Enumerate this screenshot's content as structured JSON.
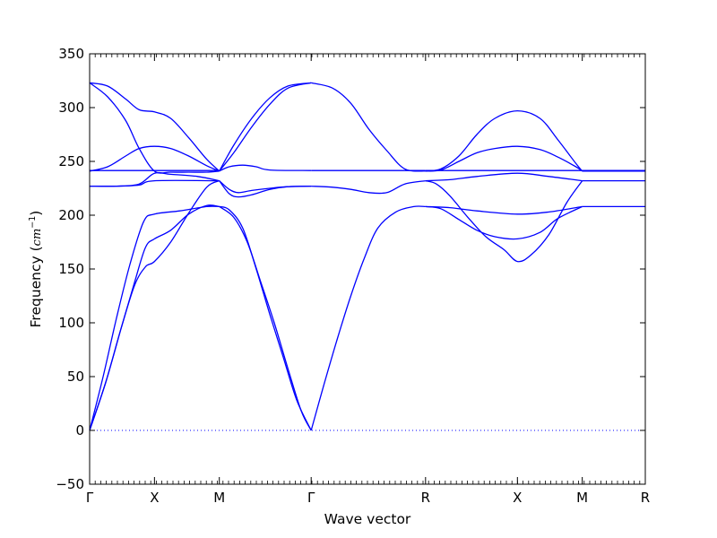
{
  "chart_data": {
    "type": "line",
    "title": "",
    "xlabel": "Wave vector",
    "ylabel_prefix": "Frequency (",
    "ylabel_unit": "cm",
    "ylabel_exp": "−1",
    "ylabel_suffix": ")",
    "ylim": [
      -50,
      350
    ],
    "yticks": [
      -50,
      0,
      50,
      100,
      150,
      200,
      250,
      300,
      350
    ],
    "ytick_labels": [
      "−50",
      "0",
      "50",
      "100",
      "150",
      "200",
      "250",
      "300",
      "350"
    ],
    "xlim": [
      0,
      6.17
    ],
    "xticks": [
      0,
      0.72,
      1.44,
      2.46,
      3.73,
      4.75,
      5.47,
      6.17
    ],
    "xtick_labels": [
      "Γ",
      "X",
      "M",
      "Γ",
      "R",
      "X",
      "M",
      "R"
    ],
    "zero_line": true,
    "line_color": "#0000ff",
    "series": [
      {
        "points": [
          [
            0,
            323
          ],
          [
            0.2,
            320
          ],
          [
            0.4,
            308
          ],
          [
            0.55,
            298
          ],
          [
            0.72,
            296
          ],
          [
            0.9,
            290
          ],
          [
            1.1,
            272
          ],
          [
            1.3,
            252
          ],
          [
            1.44,
            241
          ]
        ]
      },
      {
        "points": [
          [
            0,
            323
          ],
          [
            0.2,
            310
          ],
          [
            0.4,
            288
          ],
          [
            0.55,
            262
          ],
          [
            0.72,
            241
          ],
          [
            0.9,
            240
          ],
          [
            1.1,
            240
          ],
          [
            1.3,
            240
          ],
          [
            1.44,
            241
          ]
        ]
      },
      {
        "points": [
          [
            0,
            241
          ],
          [
            0.2,
            245
          ],
          [
            0.4,
            255
          ],
          [
            0.55,
            262
          ],
          [
            0.72,
            264
          ],
          [
            0.9,
            262
          ],
          [
            1.1,
            255
          ],
          [
            1.3,
            246
          ],
          [
            1.44,
            241
          ]
        ]
      },
      {
        "points": [
          [
            0,
            241.5
          ],
          [
            0.72,
            241.5
          ],
          [
            1.44,
            241.5
          ]
        ]
      },
      {
        "points": [
          [
            0,
            227
          ],
          [
            0.3,
            227
          ],
          [
            0.55,
            229
          ],
          [
            0.72,
            239
          ],
          [
            0.9,
            238
          ],
          [
            1.2,
            236
          ],
          [
            1.44,
            232
          ]
        ]
      },
      {
        "points": [
          [
            0,
            227
          ],
          [
            0.3,
            227
          ],
          [
            0.55,
            228
          ],
          [
            0.72,
            232
          ],
          [
            1.44,
            232
          ]
        ]
      },
      {
        "points": [
          [
            0,
            0
          ],
          [
            0.15,
            50
          ],
          [
            0.3,
            105
          ],
          [
            0.45,
            155
          ],
          [
            0.6,
            194
          ],
          [
            0.72,
            201
          ],
          [
            1.0,
            204
          ],
          [
            1.3,
            208
          ],
          [
            1.44,
            208
          ]
        ]
      },
      {
        "points": [
          [
            0,
            0
          ],
          [
            0.18,
            45
          ],
          [
            0.35,
            95
          ],
          [
            0.5,
            138
          ],
          [
            0.62,
            170
          ],
          [
            0.72,
            178
          ],
          [
            0.9,
            186
          ],
          [
            1.1,
            201
          ],
          [
            1.3,
            209
          ],
          [
            1.44,
            208
          ]
        ]
      },
      {
        "points": [
          [
            0,
            0
          ],
          [
            0.18,
            45
          ],
          [
            0.35,
            95
          ],
          [
            0.5,
            135
          ],
          [
            0.62,
            152
          ],
          [
            0.72,
            157
          ],
          [
            0.9,
            175
          ],
          [
            1.1,
            202
          ],
          [
            1.3,
            226
          ],
          [
            1.44,
            232
          ]
        ]
      },
      {
        "points": [
          [
            1.44,
            241
          ],
          [
            1.55,
            245
          ],
          [
            1.7,
            246.5
          ],
          [
            1.85,
            245
          ],
          [
            2.0,
            242
          ],
          [
            2.46,
            241.5
          ]
        ]
      },
      {
        "points": [
          [
            1.44,
            241
          ],
          [
            1.6,
            258
          ],
          [
            1.8,
            282
          ],
          [
            2.0,
            303
          ],
          [
            2.2,
            318
          ],
          [
            2.46,
            323
          ]
        ]
      },
      {
        "points": [
          [
            1.44,
            241
          ],
          [
            1.6,
            265
          ],
          [
            1.8,
            290
          ],
          [
            2.0,
            309
          ],
          [
            2.2,
            320
          ],
          [
            2.46,
            323
          ]
        ]
      },
      {
        "points": [
          [
            1.44,
            232
          ],
          [
            1.55,
            220
          ],
          [
            1.65,
            217
          ],
          [
            1.8,
            219
          ],
          [
            2.0,
            224
          ],
          [
            2.2,
            226.5
          ],
          [
            2.46,
            227
          ]
        ]
      },
      {
        "points": [
          [
            1.44,
            232
          ],
          [
            1.55,
            224
          ],
          [
            1.65,
            221
          ],
          [
            1.8,
            223
          ],
          [
            2.0,
            225
          ],
          [
            2.2,
            226.5
          ],
          [
            2.46,
            227
          ]
        ]
      },
      {
        "points": [
          [
            1.44,
            208
          ],
          [
            1.6,
            198
          ],
          [
            1.75,
            175
          ],
          [
            1.9,
            138
          ],
          [
            2.05,
            100
          ],
          [
            2.2,
            58
          ],
          [
            2.35,
            18
          ],
          [
            2.46,
            0
          ]
        ]
      },
      {
        "points": [
          [
            1.44,
            208
          ],
          [
            1.55,
            205
          ],
          [
            1.7,
            188
          ],
          [
            1.85,
            150
          ],
          [
            2.0,
            108
          ],
          [
            2.15,
            68
          ],
          [
            2.3,
            28
          ],
          [
            2.46,
            0
          ]
        ]
      },
      {
        "points": [
          [
            2.46,
            323
          ],
          [
            2.7,
            318
          ],
          [
            2.9,
            304
          ],
          [
            3.1,
            280
          ],
          [
            3.3,
            260
          ],
          [
            3.5,
            243
          ],
          [
            3.73,
            241
          ]
        ]
      },
      {
        "points": [
          [
            2.46,
            241.5
          ],
          [
            3.0,
            241.5
          ],
          [
            3.73,
            241.5
          ]
        ]
      },
      {
        "points": [
          [
            2.46,
            227
          ],
          [
            2.7,
            226
          ],
          [
            2.9,
            224
          ],
          [
            3.1,
            221
          ],
          [
            3.3,
            221
          ],
          [
            3.5,
            229
          ],
          [
            3.73,
            232
          ]
        ]
      },
      {
        "points": [
          [
            2.46,
            0
          ],
          [
            2.6,
            42
          ],
          [
            2.75,
            85
          ],
          [
            2.9,
            125
          ],
          [
            3.05,
            160
          ],
          [
            3.2,
            188
          ],
          [
            3.4,
            203
          ],
          [
            3.6,
            208
          ],
          [
            3.73,
            208
          ]
        ]
      },
      {
        "points": [
          [
            3.73,
            241
          ],
          [
            3.9,
            243
          ],
          [
            4.1,
            255
          ],
          [
            4.3,
            275
          ],
          [
            4.5,
            290
          ],
          [
            4.75,
            297
          ],
          [
            5.0,
            290
          ],
          [
            5.2,
            270
          ],
          [
            5.4,
            248
          ],
          [
            5.47,
            241
          ]
        ]
      },
      {
        "points": [
          [
            3.73,
            241
          ],
          [
            3.9,
            242
          ],
          [
            4.1,
            250
          ],
          [
            4.3,
            258
          ],
          [
            4.5,
            262
          ],
          [
            4.75,
            264
          ],
          [
            5.0,
            261
          ],
          [
            5.2,
            254
          ],
          [
            5.4,
            245
          ],
          [
            5.47,
            241
          ]
        ]
      },
      {
        "points": [
          [
            3.73,
            241.5
          ],
          [
            5.47,
            241.5
          ],
          [
            6.17,
            241.5
          ]
        ]
      },
      {
        "points": [
          [
            3.73,
            232
          ],
          [
            4.0,
            233
          ],
          [
            4.3,
            236
          ],
          [
            4.75,
            239
          ],
          [
            5.1,
            236
          ],
          [
            5.47,
            232
          ]
        ]
      },
      {
        "points": [
          [
            3.73,
            232
          ],
          [
            3.85,
            229
          ],
          [
            4.0,
            218
          ],
          [
            4.2,
            198
          ],
          [
            4.4,
            180
          ],
          [
            4.6,
            168
          ],
          [
            4.75,
            157
          ],
          [
            4.9,
            163
          ],
          [
            5.1,
            182
          ],
          [
            5.3,
            212
          ],
          [
            5.47,
            232
          ]
        ]
      },
      {
        "points": [
          [
            3.73,
            208
          ],
          [
            4.0,
            207
          ],
          [
            4.3,
            204
          ],
          [
            4.75,
            201
          ],
          [
            5.1,
            203
          ],
          [
            5.47,
            208
          ]
        ]
      },
      {
        "points": [
          [
            3.73,
            208
          ],
          [
            3.9,
            206
          ],
          [
            4.1,
            196
          ],
          [
            4.3,
            186
          ],
          [
            4.5,
            180
          ],
          [
            4.75,
            178
          ],
          [
            5.0,
            184
          ],
          [
            5.2,
            197
          ],
          [
            5.47,
            208
          ]
        ]
      },
      {
        "points": [
          [
            5.47,
            241
          ],
          [
            6.17,
            241
          ]
        ]
      },
      {
        "points": [
          [
            5.47,
            232
          ],
          [
            6.17,
            232
          ]
        ]
      },
      {
        "points": [
          [
            5.47,
            208
          ],
          [
            6.17,
            208
          ]
        ]
      }
    ]
  }
}
